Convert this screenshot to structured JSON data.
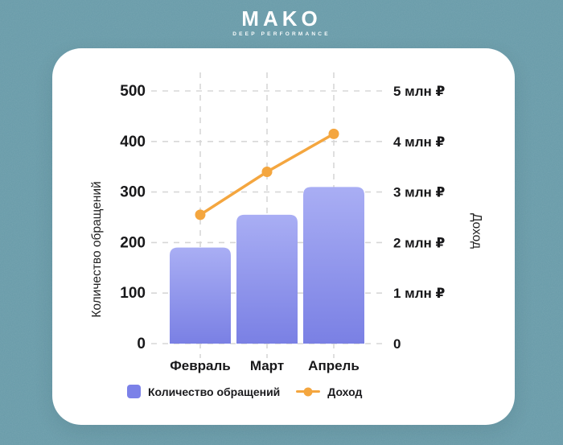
{
  "page": {
    "background_color": "#679aa8",
    "card_background": "#ffffff"
  },
  "logo": {
    "title": "MAKO",
    "subtitle": "DEEP PERFORMANCE",
    "color": "#ffffff"
  },
  "chart_data": {
    "type": "bar",
    "subtype": "bar+line combo",
    "categories": [
      "Февраль",
      "Март",
      "Апрель"
    ],
    "series": [
      {
        "name": "Количество обращений",
        "type": "bar",
        "axis": "left",
        "values": [
          190,
          255,
          310
        ]
      },
      {
        "name": "Доход",
        "type": "line",
        "axis": "right",
        "values": [
          2.55,
          3.4,
          4.15
        ],
        "unit": "млн ₽"
      }
    ],
    "left_axis": {
      "label": "Количество обращений",
      "min": 0,
      "max": 500,
      "ticks": [
        0,
        100,
        200,
        300,
        400,
        500
      ]
    },
    "right_axis": {
      "label": "Доход",
      "min": 0,
      "max": 5,
      "tick_labels": [
        "0",
        "1 млн ₽",
        "2 млн ₽",
        "3 млн ₽",
        "4 млн ₽",
        "5 млн ₽"
      ]
    },
    "grid": "dashed horizontal at ticks, dashed vertical at categories",
    "legend_position": "bottom",
    "colors": {
      "bar_top": "#a9aef4",
      "bar_bottom": "#7a80e4",
      "bar_mid": "#7b81e8",
      "line": "#f4a63f",
      "grid": "#d7d7d7",
      "text": "#18181a"
    }
  },
  "legend": {
    "items": [
      {
        "label": "Количество обращений",
        "swatch": "square"
      },
      {
        "label": "Доход",
        "swatch": "line-dot"
      }
    ]
  }
}
